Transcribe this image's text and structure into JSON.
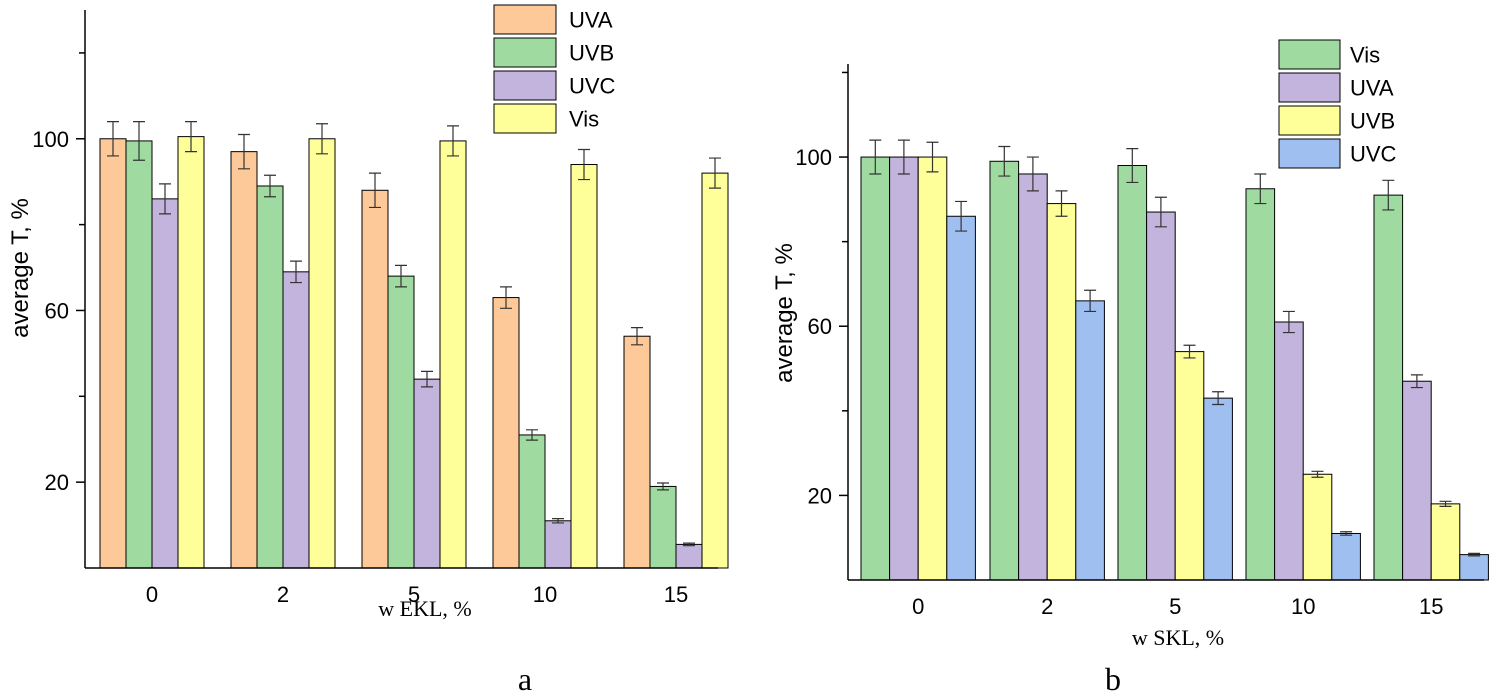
{
  "chart_data": [
    {
      "type": "bar",
      "panel_label": "a",
      "xlabel": "w EKL, %",
      "ylabel": "average T, %",
      "ylim": [
        0,
        130
      ],
      "yticks": [
        20,
        60,
        100
      ],
      "categories": [
        "0",
        "2",
        "5",
        "10",
        "15"
      ],
      "legend_position": "top-right",
      "series": [
        {
          "name": "UVA",
          "color": "#fdc998",
          "values": [
            100,
            97,
            88,
            63,
            54
          ],
          "errors": [
            4,
            4,
            4,
            2.5,
            2
          ]
        },
        {
          "name": "UVB",
          "color": "#9fdba0",
          "values": [
            99.5,
            89,
            68,
            31,
            19
          ],
          "errors": [
            4.5,
            2.5,
            2.5,
            1.2,
            0.8
          ]
        },
        {
          "name": "UVC",
          "color": "#c2b4dc",
          "values": [
            86,
            69,
            44,
            11,
            5.5
          ],
          "errors": [
            3.5,
            2.5,
            1.8,
            0.5,
            0.3
          ]
        },
        {
          "name": "Vis",
          "color": "#ffff99",
          "values": [
            100.5,
            100,
            99.5,
            94,
            92
          ],
          "errors": [
            3.5,
            3.5,
            3.5,
            3.5,
            3.5
          ]
        }
      ]
    },
    {
      "type": "bar",
      "panel_label": "b",
      "xlabel": "w SKL, %",
      "ylabel": "average T, %",
      "ylim": [
        0,
        122
      ],
      "yticks": [
        20,
        60,
        100
      ],
      "categories": [
        "0",
        "2",
        "5",
        "10",
        "15"
      ],
      "legend_position": "top-right",
      "series": [
        {
          "name": "Vis",
          "color": "#9fdba0",
          "values": [
            100,
            99,
            98,
            92.5,
            91
          ],
          "errors": [
            4,
            3.5,
            4,
            3.5,
            3.5
          ]
        },
        {
          "name": "UVA",
          "color": "#c2b4dc",
          "values": [
            100,
            96,
            87,
            61,
            47
          ],
          "errors": [
            4,
            4,
            3.5,
            2.5,
            1.5
          ]
        },
        {
          "name": "UVB",
          "color": "#ffff99",
          "values": [
            100,
            89,
            54,
            25,
            18
          ],
          "errors": [
            3.5,
            3,
            1.5,
            0.7,
            0.6
          ]
        },
        {
          "name": "UVC",
          "color": "#9ebfef",
          "values": [
            86,
            66,
            43,
            11,
            6
          ],
          "errors": [
            3.5,
            2.5,
            1.5,
            0.4,
            0.3
          ]
        }
      ]
    }
  ]
}
